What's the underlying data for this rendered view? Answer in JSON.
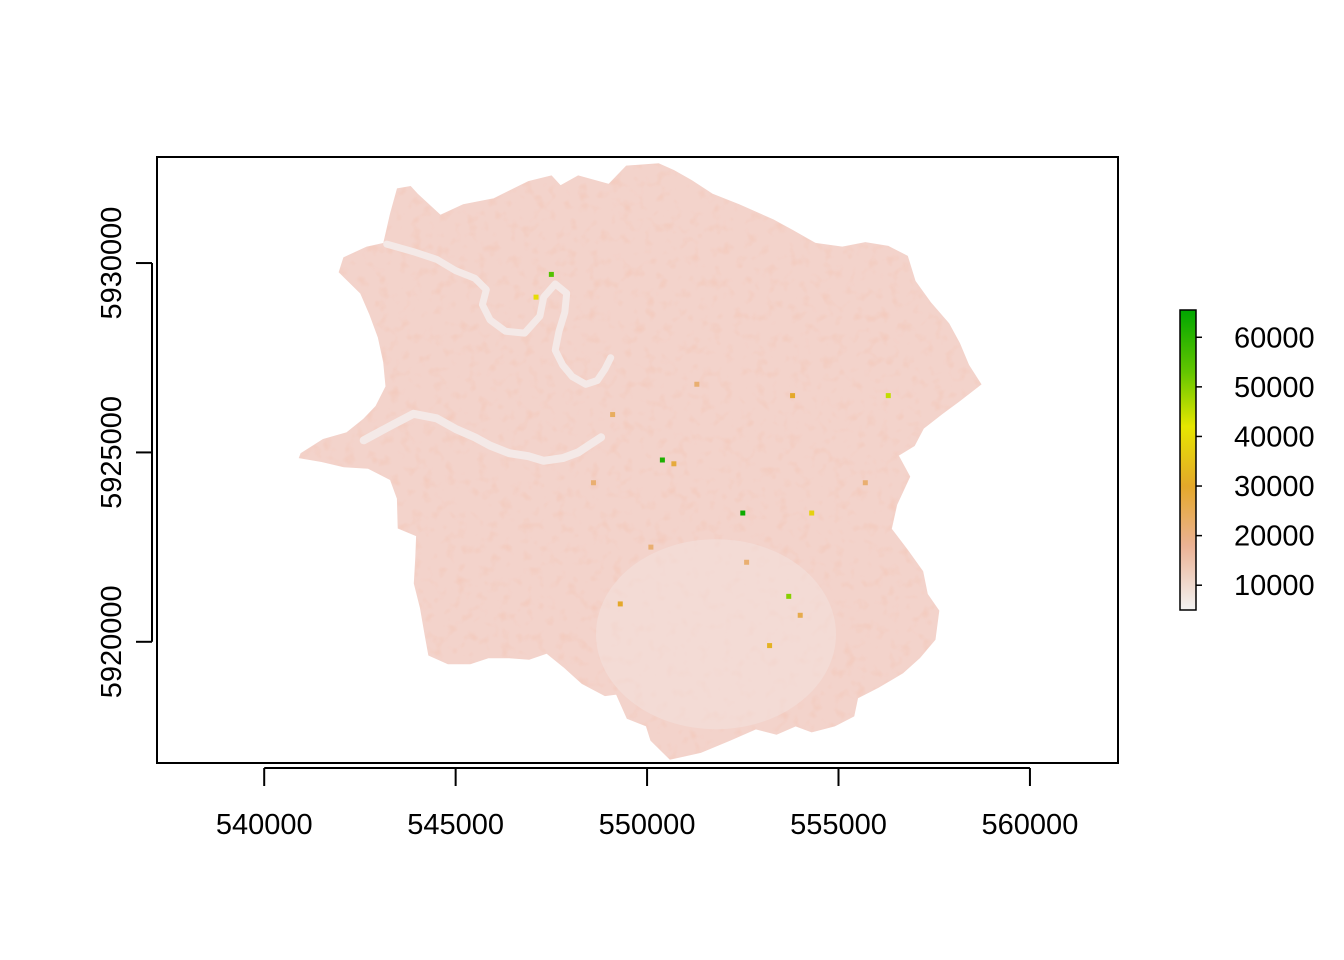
{
  "chart_data": {
    "type": "heatmap",
    "title": "",
    "xlabel": "",
    "ylabel": "",
    "xlim": [
      537200,
      562300
    ],
    "ylim": [
      5916800,
      5932800
    ],
    "x_ticks": [
      540000,
      545000,
      550000,
      555000,
      560000
    ],
    "x_tick_labels": [
      "540000",
      "545000",
      "550000",
      "555000",
      "560000"
    ],
    "y_ticks": [
      5920000,
      5925000,
      5930000
    ],
    "y_tick_labels": [
      "5920000",
      "5925000",
      "5930000"
    ],
    "legend": {
      "placement": "right",
      "min": 5000,
      "max": 65500,
      "ticks": [
        10000,
        20000,
        30000,
        40000,
        50000,
        60000
      ],
      "tick_labels": [
        "10000",
        "20000",
        "30000",
        "40000",
        "50000",
        "60000"
      ],
      "color_stops": [
        {
          "value": 5000,
          "color": "#f2f2f2"
        },
        {
          "value": 18000,
          "color": "#ebb294"
        },
        {
          "value": 30000,
          "color": "#e4a82a"
        },
        {
          "value": 42000,
          "color": "#e6e600"
        },
        {
          "value": 53000,
          "color": "#63c600"
        },
        {
          "value": 65500,
          "color": "#00a600"
        }
      ]
    },
    "region": {
      "base_color": "#f3d3cb",
      "light_color": "#f2e2df",
      "dark_color": "#eebfab",
      "outline": [
        [
          540960,
          5924970
        ],
        [
          541540,
          5925340
        ],
        [
          542160,
          5925520
        ],
        [
          542600,
          5925880
        ],
        [
          542920,
          5926220
        ],
        [
          543180,
          5926740
        ],
        [
          543120,
          5927380
        ],
        [
          542980,
          5928040
        ],
        [
          542760,
          5928640
        ],
        [
          542520,
          5929200
        ],
        [
          541960,
          5929760
        ],
        [
          542080,
          5930140
        ],
        [
          542680,
          5930420
        ],
        [
          543120,
          5930520
        ],
        [
          543300,
          5931300
        ],
        [
          543480,
          5931960
        ],
        [
          543820,
          5932020
        ],
        [
          544000,
          5931820
        ],
        [
          544600,
          5931260
        ],
        [
          545200,
          5931540
        ],
        [
          546000,
          5931700
        ],
        [
          546900,
          5932150
        ],
        [
          547500,
          5932300
        ],
        [
          547740,
          5932040
        ],
        [
          548200,
          5932300
        ],
        [
          549000,
          5932080
        ],
        [
          549460,
          5932560
        ],
        [
          550300,
          5932620
        ],
        [
          550700,
          5932440
        ],
        [
          551160,
          5932180
        ],
        [
          551700,
          5931820
        ],
        [
          552400,
          5931540
        ],
        [
          553300,
          5931140
        ],
        [
          553800,
          5930860
        ],
        [
          554400,
          5930520
        ],
        [
          555100,
          5930420
        ],
        [
          555700,
          5930540
        ],
        [
          556300,
          5930440
        ],
        [
          556800,
          5930180
        ],
        [
          557000,
          5929520
        ],
        [
          557400,
          5928960
        ],
        [
          557880,
          5928400
        ],
        [
          558160,
          5927880
        ],
        [
          558400,
          5927300
        ],
        [
          558720,
          5926800
        ],
        [
          558160,
          5926360
        ],
        [
          557700,
          5926020
        ],
        [
          557220,
          5925640
        ],
        [
          556980,
          5925180
        ],
        [
          556560,
          5924920
        ],
        [
          556860,
          5924360
        ],
        [
          556520,
          5923620
        ],
        [
          556380,
          5922980
        ],
        [
          556800,
          5922420
        ],
        [
          557200,
          5921860
        ],
        [
          557320,
          5921260
        ],
        [
          557620,
          5920820
        ],
        [
          557520,
          5920060
        ],
        [
          557120,
          5919580
        ],
        [
          556680,
          5919180
        ],
        [
          556040,
          5918800
        ],
        [
          555500,
          5918520
        ],
        [
          555400,
          5918040
        ],
        [
          554900,
          5917780
        ],
        [
          554300,
          5917620
        ],
        [
          553880,
          5917780
        ],
        [
          553380,
          5917560
        ],
        [
          552840,
          5917700
        ],
        [
          552160,
          5917400
        ],
        [
          551400,
          5917080
        ],
        [
          550600,
          5916900
        ],
        [
          550100,
          5917400
        ],
        [
          549980,
          5917780
        ],
        [
          549480,
          5917980
        ],
        [
          549200,
          5918620
        ],
        [
          548900,
          5918580
        ],
        [
          548300,
          5918900
        ],
        [
          547820,
          5919340
        ],
        [
          547380,
          5919700
        ],
        [
          546920,
          5919540
        ],
        [
          546400,
          5919580
        ],
        [
          545860,
          5919580
        ],
        [
          545380,
          5919420
        ],
        [
          544800,
          5919420
        ],
        [
          544300,
          5919650
        ],
        [
          544200,
          5920200
        ],
        [
          544080,
          5920900
        ],
        [
          543920,
          5921540
        ],
        [
          543960,
          5922240
        ],
        [
          543980,
          5922800
        ],
        [
          543500,
          5923000
        ],
        [
          543480,
          5923780
        ],
        [
          543300,
          5924280
        ],
        [
          542720,
          5924580
        ],
        [
          542080,
          5924620
        ],
        [
          541500,
          5924760
        ],
        [
          540920,
          5924860
        ]
      ],
      "river_north": [
        [
          543200,
          5930500
        ],
        [
          543900,
          5930300
        ],
        [
          544500,
          5930100
        ],
        [
          545000,
          5929800
        ],
        [
          545500,
          5929600
        ],
        [
          545800,
          5929300
        ],
        [
          545700,
          5928900
        ],
        [
          545900,
          5928500
        ],
        [
          546300,
          5928200
        ],
        [
          546800,
          5928150
        ],
        [
          547200,
          5928600
        ],
        [
          547300,
          5929100
        ],
        [
          547600,
          5929450
        ],
        [
          547900,
          5929200
        ],
        [
          547850,
          5928700
        ],
        [
          547700,
          5928200
        ],
        [
          547600,
          5927700
        ],
        [
          547800,
          5927300
        ],
        [
          548050,
          5927000
        ],
        [
          548400,
          5926800
        ],
        [
          548700,
          5926900
        ],
        [
          548900,
          5927200
        ],
        [
          549050,
          5927500
        ]
      ],
      "river_south": [
        [
          542600,
          5925320
        ],
        [
          543300,
          5925700
        ],
        [
          543900,
          5926020
        ],
        [
          544500,
          5925900
        ],
        [
          545000,
          5925620
        ],
        [
          545500,
          5925400
        ],
        [
          545900,
          5925180
        ],
        [
          546400,
          5924980
        ],
        [
          546900,
          5924900
        ],
        [
          547300,
          5924780
        ],
        [
          547800,
          5924850
        ],
        [
          548200,
          5925000
        ],
        [
          548500,
          5925200
        ],
        [
          548800,
          5925400
        ]
      ],
      "hotspots": [
        [
          553800,
          5926500,
          30000
        ],
        [
          550400,
          5924800,
          62000
        ],
        [
          552500,
          5923400,
          64000
        ],
        [
          554000,
          5920700,
          26000
        ],
        [
          556300,
          5926500,
          45000
        ],
        [
          553700,
          5921200,
          50000
        ],
        [
          550700,
          5924700,
          28000
        ],
        [
          549100,
          5926000,
          24000
        ],
        [
          550100,
          5922500,
          22000
        ],
        [
          551300,
          5926800,
          22000
        ],
        [
          547100,
          5929100,
          40000
        ],
        [
          547500,
          5929700,
          55000
        ],
        [
          552600,
          5922100,
          22000
        ],
        [
          554300,
          5923400,
          38000
        ],
        [
          553200,
          5919900,
          32000
        ],
        [
          548600,
          5924200,
          22000
        ],
        [
          555700,
          5924200,
          22000
        ],
        [
          549300,
          5921000,
          30000
        ]
      ]
    }
  }
}
